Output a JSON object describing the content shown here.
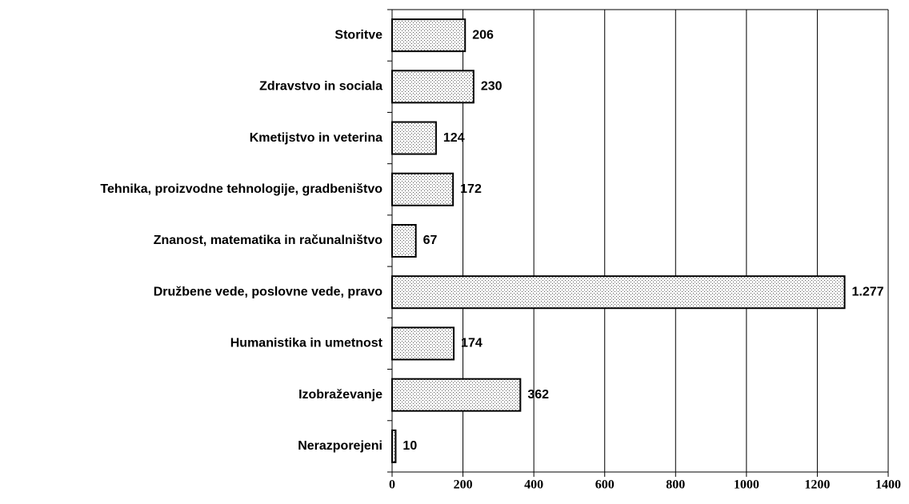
{
  "chart_data": {
    "type": "bar",
    "orientation": "horizontal",
    "categories": [
      "Storitve",
      "Zdravstvo in sociala",
      "Kmetijstvo in veterina",
      "Tehnika, proizvodne tehnologije, gradbeništvo",
      "Znanost, matematika in računalništvo",
      "Družbene vede, poslovne vede, pravo",
      "Humanistika in umetnost",
      "Izobraževanje",
      "Nerazporejeni"
    ],
    "values": [
      206,
      230,
      124,
      172,
      67,
      1277,
      174,
      362,
      10
    ],
    "value_labels": [
      "206",
      "230",
      "124",
      "172",
      "67",
      "1.277",
      "174",
      "362",
      "10"
    ],
    "xlim": [
      0,
      1400
    ],
    "xticks": [
      0,
      200,
      400,
      600,
      800,
      1000,
      1200,
      1400
    ],
    "grid": true,
    "color": "#000000"
  }
}
